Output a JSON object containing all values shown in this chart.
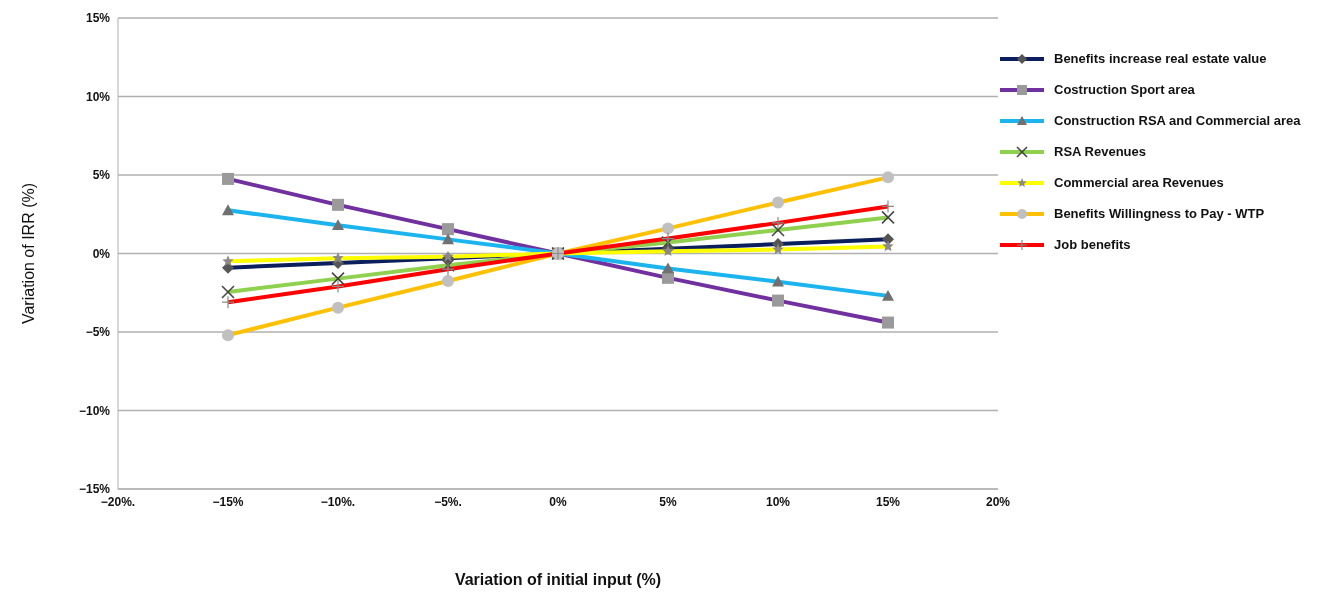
{
  "chart_data": {
    "type": "line",
    "xlabel": "Variation of initial input (%)",
    "ylabel": "Variation of IRR (%)",
    "x": [
      -15,
      -10,
      -5,
      0,
      5,
      10,
      15
    ],
    "xlim": [
      -20,
      20
    ],
    "xticks": [
      {
        "value": -20,
        "label": "−20%."
      },
      {
        "value": -15,
        "label": "−15%"
      },
      {
        "value": -10,
        "label": "−10%."
      },
      {
        "value": -5,
        "label": "−5%."
      },
      {
        "value": 0,
        "label": "0%"
      },
      {
        "value": 5,
        "label": "5%"
      },
      {
        "value": 10,
        "label": "10%"
      },
      {
        "value": 15,
        "label": "15%"
      },
      {
        "value": 20,
        "label": "20%"
      }
    ],
    "ylim": [
      -15,
      15
    ],
    "yticks": [
      {
        "value": -15,
        "label": "−15%"
      },
      {
        "value": -10,
        "label": "−10%"
      },
      {
        "value": -5,
        "label": "−5%"
      },
      {
        "value": 0,
        "label": "0%"
      },
      {
        "value": 5,
        "label": "5%"
      },
      {
        "value": 10,
        "label": "10%"
      },
      {
        "value": 15,
        "label": "15%"
      }
    ],
    "grid": "y",
    "legend": "right",
    "line_style": "solid",
    "series": [
      {
        "name": "Benefits increase  real estate value",
        "color": "#0b1f5c",
        "marker": "diamond",
        "values": [
          -0.9,
          -0.6,
          -0.3,
          0,
          0.3,
          0.6,
          0.9
        ]
      },
      {
        "name": "Costruction Sport area",
        "color": "#7030a0",
        "marker": "square",
        "values": [
          4.75,
          3.1,
          1.55,
          0,
          -1.55,
          -3.0,
          -4.4
        ]
      },
      {
        "name": "Construction RSA and Commercial area",
        "color": "#1cb4ee",
        "marker": "triangle",
        "values": [
          2.75,
          1.8,
          0.9,
          0,
          -0.95,
          -1.8,
          -2.7
        ]
      },
      {
        "name": "RSA Revenues",
        "color": "#8fd14f",
        "marker": "cross",
        "values": [
          -2.45,
          -1.6,
          -0.75,
          0,
          0.7,
          1.5,
          2.3
        ]
      },
      {
        "name": "Commercial area Revenues",
        "color": "#ffff00",
        "marker": "star",
        "values": [
          -0.5,
          -0.3,
          -0.2,
          0,
          0.15,
          0.25,
          0.45
        ]
      },
      {
        "name": "Benefits Willingness to Pay - WTP",
        "color": "#ffc000",
        "marker": "circle",
        "values": [
          -5.2,
          -3.45,
          -1.75,
          0,
          1.6,
          3.25,
          4.85
        ]
      },
      {
        "name": "Job benefits",
        "color": "#ff0000",
        "marker": "plus",
        "values": [
          -3.1,
          -2.1,
          -1.0,
          0,
          0.95,
          1.95,
          3.0
        ]
      }
    ]
  }
}
